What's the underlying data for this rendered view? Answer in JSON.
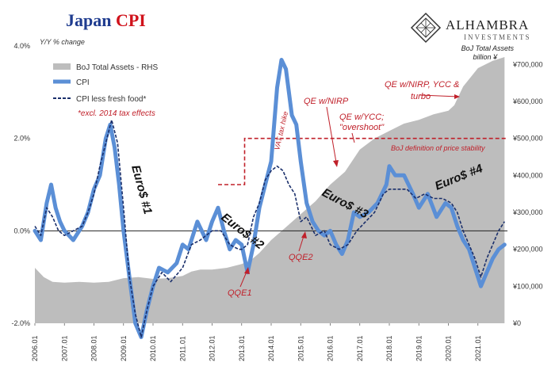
{
  "title": {
    "part1": "Japan ",
    "part2": "CPI"
  },
  "logo": {
    "name": "ALHAMBRA",
    "sub": "INVESTMENTS"
  },
  "rhs_title": {
    "line1": "BoJ Total Assets",
    "line2": "billion ¥"
  },
  "colors": {
    "cpi": "#5b8fd6",
    "core": "#1a2f6b",
    "assets": "#bdbdbd",
    "annotation": "#c0202a",
    "title_blue": "#1f3c8f",
    "title_red": "#d0121b"
  },
  "annotations": {
    "qe_nirp_ycc": "QE w/NIRP, YCC &",
    "qe_nirp_ycc_2": "turbo",
    "qe_nirp": "QE w/NIRP",
    "qe_ycc": "QE w/YCC;",
    "qe_ycc_2": "\"overshoot\"",
    "vat": "VAT tax hike",
    "stability": "BoJ definition of price stability",
    "qe1": "QQE1",
    "qe2": "QQE2",
    "euro1": "Euro$ #1",
    "euro2": "Euro$ #2",
    "euro3": "Euro$ #3",
    "euro4": "Euro$ #4"
  },
  "chart_data": {
    "type": "line",
    "title": "Japan CPI",
    "ylabel": "Y/Y % change",
    "y2label": "BoJ Total Assets billion ¥",
    "ylim": [
      -2.0,
      4.0
    ],
    "y2lim": [
      0,
      750000
    ],
    "yticks": [
      "4.0%",
      "2.0%",
      "0.0%",
      "-2.0%"
    ],
    "y2ticks": [
      "¥700,000",
      "¥600,000",
      "¥500,000",
      "¥400,000",
      "¥300,000",
      "¥200,000",
      "¥100,000",
      "¥0"
    ],
    "xticks": [
      "2006.01",
      "2007.01",
      "2008.01",
      "2009.01",
      "2010.01",
      "2011.01",
      "2012.01",
      "2013.01",
      "2014.01",
      "2015.01",
      "2016.01",
      "2017.01",
      "2018.01",
      "2019.01",
      "2020.01",
      "2021.01"
    ],
    "legend": [
      "BoJ Total Assets - RHS",
      "CPI",
      "CPI less fresh food*"
    ],
    "legend_note": "*excl. 2014 tax effects",
    "reference_line": {
      "label": "BoJ definition of price stability",
      "values": [
        {
          "x": 2012.2,
          "y": 1.0
        },
        {
          "x": 2013.1,
          "y": 1.0
        },
        {
          "x": 2013.1,
          "y": 2.0
        },
        {
          "x": 2022.0,
          "y": 2.0
        }
      ]
    },
    "series": [
      {
        "name": "BoJ Total Assets - RHS",
        "axis": "right",
        "type": "area",
        "x": [
          2006.0,
          2006.3,
          2006.6,
          2007.0,
          2007.5,
          2008.0,
          2008.5,
          2009.0,
          2009.5,
          2010.0,
          2010.5,
          2011.0,
          2011.3,
          2011.6,
          2012.0,
          2012.5,
          2013.0,
          2013.3,
          2013.6,
          2014.0,
          2014.5,
          2015.0,
          2015.5,
          2016.0,
          2016.5,
          2017.0,
          2017.5,
          2018.0,
          2018.5,
          2019.0,
          2019.5,
          2020.0,
          2020.2,
          2020.5,
          2021.0,
          2021.5,
          2021.9
        ],
        "values": [
          150000,
          125000,
          112000,
          110000,
          112000,
          110000,
          112000,
          122000,
          125000,
          120000,
          122000,
          128000,
          140000,
          145000,
          145000,
          150000,
          160000,
          170000,
          190000,
          225000,
          260000,
          295000,
          330000,
          375000,
          410000,
          470000,
          500000,
          520000,
          540000,
          550000,
          565000,
          575000,
          590000,
          640000,
          690000,
          710000,
          720000
        ]
      },
      {
        "name": "CPI",
        "axis": "left",
        "x": [
          2006.0,
          2006.2,
          2006.4,
          2006.55,
          2006.7,
          2006.85,
          2007.0,
          2007.3,
          2007.6,
          2007.8,
          2008.0,
          2008.2,
          2008.4,
          2008.55,
          2008.7,
          2008.85,
          2009.0,
          2009.2,
          2009.4,
          2009.6,
          2009.8,
          2010.0,
          2010.2,
          2010.5,
          2010.8,
          2011.0,
          2011.2,
          2011.5,
          2011.8,
          2012.0,
          2012.2,
          2012.4,
          2012.6,
          2012.8,
          2013.0,
          2013.2,
          2013.4,
          2013.6,
          2013.8,
          2014.0,
          2014.2,
          2014.35,
          2014.5,
          2014.7,
          2014.85,
          2015.0,
          2015.2,
          2015.4,
          2015.6,
          2015.8,
          2016.0,
          2016.2,
          2016.4,
          2016.6,
          2016.8,
          2017.0,
          2017.3,
          2017.6,
          2017.9,
          2018.0,
          2018.2,
          2018.5,
          2018.8,
          2019.0,
          2019.3,
          2019.6,
          2019.9,
          2020.1,
          2020.3,
          2020.5,
          2020.7,
          2020.9,
          2021.1,
          2021.3,
          2021.5,
          2021.7,
          2021.9
        ],
        "values": [
          0.0,
          -0.2,
          0.6,
          1.0,
          0.5,
          0.2,
          0.0,
          -0.2,
          0.1,
          0.4,
          0.9,
          1.2,
          2.0,
          2.3,
          1.8,
          1.0,
          0.0,
          -1.0,
          -2.0,
          -2.3,
          -1.7,
          -1.2,
          -0.8,
          -0.9,
          -0.7,
          -0.3,
          -0.4,
          0.2,
          -0.2,
          0.2,
          0.5,
          0.0,
          -0.4,
          -0.2,
          -0.3,
          -0.9,
          -0.3,
          0.5,
          1.0,
          1.5,
          3.1,
          3.7,
          3.5,
          2.5,
          2.3,
          1.5,
          0.6,
          0.2,
          0.0,
          -0.1,
          0.0,
          -0.3,
          -0.5,
          -0.2,
          0.4,
          0.3,
          0.4,
          0.6,
          1.0,
          1.4,
          1.2,
          1.2,
          0.8,
          0.5,
          0.8,
          0.3,
          0.6,
          0.5,
          0.1,
          -0.2,
          -0.4,
          -0.8,
          -1.2,
          -0.9,
          -0.6,
          -0.4,
          -0.3
        ]
      },
      {
        "name": "CPI less fresh food*",
        "axis": "left",
        "x": [
          2006.0,
          2006.2,
          2006.4,
          2006.6,
          2006.8,
          2007.0,
          2007.3,
          2007.6,
          2007.8,
          2008.0,
          2008.2,
          2008.4,
          2008.6,
          2008.8,
          2009.0,
          2009.2,
          2009.4,
          2009.6,
          2009.8,
          2010.0,
          2010.3,
          2010.6,
          2011.0,
          2011.3,
          2011.6,
          2012.0,
          2012.3,
          2012.6,
          2012.9,
          2013.0,
          2013.2,
          2013.4,
          2013.6,
          2013.8,
          2014.0,
          2014.2,
          2014.4,
          2014.6,
          2014.8,
          2015.0,
          2015.2,
          2015.5,
          2015.8,
          2016.0,
          2016.3,
          2016.6,
          2016.9,
          2017.2,
          2017.5,
          2017.8,
          2018.0,
          2018.3,
          2018.6,
          2018.9,
          2019.2,
          2019.5,
          2019.8,
          2020.1,
          2020.3,
          2020.5,
          2020.7,
          2020.9,
          2021.1,
          2021.3,
          2021.5,
          2021.7,
          2021.9
        ],
        "values": [
          0.1,
          -0.1,
          0.5,
          0.3,
          0.0,
          -0.1,
          0.0,
          0.1,
          0.4,
          0.8,
          1.4,
          1.9,
          2.4,
          1.9,
          0.5,
          -1.0,
          -1.8,
          -2.3,
          -1.7,
          -1.2,
          -0.9,
          -1.1,
          -0.8,
          -0.3,
          -0.2,
          0.0,
          0.0,
          -0.3,
          -0.4,
          -0.4,
          -0.3,
          0.3,
          0.6,
          1.1,
          1.3,
          1.4,
          1.3,
          1.0,
          0.8,
          0.2,
          0.3,
          -0.1,
          0.0,
          -0.3,
          -0.4,
          -0.3,
          0.0,
          0.2,
          0.4,
          0.8,
          0.9,
          0.9,
          0.9,
          0.7,
          0.8,
          0.7,
          0.7,
          0.6,
          0.4,
          0.0,
          -0.3,
          -0.6,
          -1.0,
          -0.6,
          -0.3,
          0.0,
          0.2
        ]
      }
    ]
  }
}
